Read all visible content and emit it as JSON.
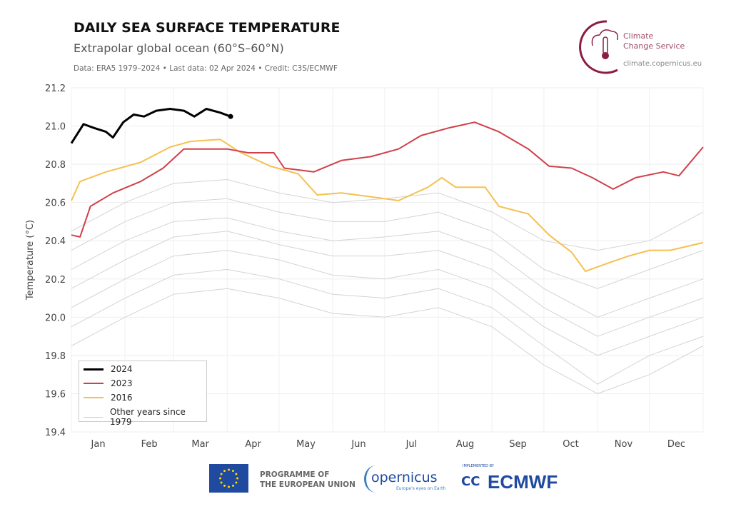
{
  "header": {
    "title": "DAILY SEA SURFACE TEMPERATURE",
    "subtitle": "Extrapolar global ocean (60°S–60°N)",
    "meta": "Data: ERA5 1979–2024 • Last data: 02 Apr 2024 • Credit: C3S/ECMWF"
  },
  "logo": {
    "line1": "Climate",
    "line2": "Change Service",
    "url": "climate.copernicus.eu",
    "color": "#8b1e3f"
  },
  "footer": {
    "eu": "PROGRAMME OF",
    "eu2": "THE EUROPEAN UNION",
    "copernicus": "opernicus",
    "copernicus_tag": "Europe's eyes on Earth",
    "ecmwf_top": "IMPLEMENTED BY",
    "ecmwf": "ECMWF"
  },
  "chart_data": {
    "type": "line",
    "title": "DAILY SEA SURFACE TEMPERATURE",
    "ylabel": "Temperature (°C)",
    "xlabel": "",
    "ylim": [
      19.4,
      21.2
    ],
    "yticks": [
      "21.2",
      "21.0",
      "20.8",
      "20.6",
      "20.4",
      "20.2",
      "20.0",
      "19.8",
      "19.6",
      "19.4"
    ],
    "xlim": [
      1,
      366
    ],
    "grid": true,
    "legend_placement": "bottom-left",
    "months": [
      "Jan",
      "Feb",
      "Mar",
      "Apr",
      "May",
      "Jun",
      "Jul",
      "Aug",
      "Sep",
      "Oct",
      "Nov",
      "Dec"
    ],
    "series": [
      {
        "name": "2024",
        "color": "#000000",
        "x": [
          1,
          8,
          14,
          21,
          25,
          31,
          37,
          43,
          50,
          58,
          66,
          72,
          79,
          87,
          93
        ],
        "y": [
          20.91,
          21.01,
          20.99,
          20.97,
          20.94,
          21.02,
          21.06,
          21.05,
          21.08,
          21.09,
          21.08,
          21.05,
          21.09,
          21.07,
          21.05
        ]
      },
      {
        "name": "2023",
        "color": "#d0404a",
        "x": [
          1,
          6,
          12,
          25,
          41,
          54,
          66,
          79,
          91,
          103,
          118,
          124,
          141,
          157,
          174,
          190,
          203,
          219,
          234,
          248,
          265,
          277,
          290,
          302,
          314,
          327,
          343,
          352,
          366
        ],
        "y": [
          20.43,
          20.42,
          20.58,
          20.65,
          20.71,
          20.78,
          20.88,
          20.88,
          20.88,
          20.86,
          20.86,
          20.78,
          20.76,
          20.82,
          20.84,
          20.88,
          20.95,
          20.99,
          21.02,
          20.97,
          20.88,
          20.79,
          20.78,
          20.73,
          20.67,
          20.73,
          20.76,
          20.74,
          20.89
        ]
      },
      {
        "name": "2016",
        "color": "#f5c050",
        "x": [
          1,
          6,
          21,
          41,
          58,
          70,
          87,
          99,
          116,
          132,
          143,
          157,
          174,
          190,
          207,
          215,
          223,
          240,
          248,
          265,
          277,
          290,
          298,
          310,
          323,
          335,
          347,
          366
        ],
        "y": [
          20.61,
          20.71,
          20.76,
          20.81,
          20.89,
          20.92,
          20.93,
          20.86,
          20.79,
          20.75,
          20.64,
          20.65,
          20.63,
          20.61,
          20.68,
          20.73,
          20.68,
          20.68,
          20.58,
          20.54,
          20.43,
          20.34,
          20.24,
          20.28,
          20.32,
          20.35,
          20.35,
          20.39
        ]
      }
    ],
    "other_years": {
      "name": "Other years since 1979",
      "color": "#d4d4d4",
      "x": [
        1,
        32,
        60,
        91,
        121,
        152,
        182,
        213,
        244,
        274,
        305,
        335,
        366
      ],
      "series": [
        [
          20.45,
          20.6,
          20.7,
          20.72,
          20.65,
          20.6,
          20.62,
          20.65,
          20.55,
          20.4,
          20.35,
          20.4,
          20.55
        ],
        [
          20.35,
          20.5,
          20.6,
          20.62,
          20.55,
          20.5,
          20.5,
          20.55,
          20.45,
          20.25,
          20.15,
          20.25,
          20.35
        ],
        [
          20.25,
          20.4,
          20.5,
          20.52,
          20.45,
          20.4,
          20.42,
          20.45,
          20.35,
          20.15,
          20.0,
          20.1,
          20.2
        ],
        [
          20.15,
          20.3,
          20.42,
          20.45,
          20.38,
          20.32,
          20.32,
          20.35,
          20.25,
          20.05,
          19.9,
          20.0,
          20.1
        ],
        [
          20.05,
          20.2,
          20.32,
          20.35,
          20.3,
          20.22,
          20.2,
          20.25,
          20.15,
          19.95,
          19.8,
          19.9,
          20.0
        ],
        [
          19.95,
          20.1,
          20.22,
          20.25,
          20.2,
          20.12,
          20.1,
          20.15,
          20.05,
          19.85,
          19.65,
          19.8,
          19.9
        ],
        [
          19.85,
          20.0,
          20.12,
          20.15,
          20.1,
          20.02,
          20.0,
          20.05,
          19.95,
          19.75,
          19.6,
          19.7,
          19.85
        ]
      ]
    }
  }
}
